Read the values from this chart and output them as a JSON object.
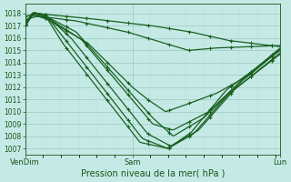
{
  "title": "Pression niveau de la mer( hPa )",
  "xlabel_ticks": [
    "VenDim",
    "Sam",
    "Lun"
  ],
  "xlabel_tick_positions": [
    0.0,
    0.42,
    1.0
  ],
  "ylim": [
    1006.5,
    1018.8
  ],
  "yticks": [
    1007,
    1008,
    1009,
    1010,
    1011,
    1012,
    1013,
    1014,
    1015,
    1016,
    1017,
    1018
  ],
  "bg_color": "#c5eae6",
  "grid_major_color": "#9dc8c2",
  "grid_minor_color": "#b8ddd9",
  "line_color": "#1a6020",
  "line_width": 0.9,
  "figsize": [
    3.2,
    2.0
  ],
  "dpi": 100,
  "complex_lines": [
    {
      "pts_x": [
        0.0,
        0.03,
        0.08,
        0.2,
        0.5,
        0.58,
        0.7,
        0.85,
        1.0
      ],
      "pts_y": [
        1017.0,
        1018.0,
        1017.8,
        1016.5,
        1009.5,
        1008.0,
        1009.5,
        1012.5,
        1015.1
      ],
      "noise": 0.0
    },
    {
      "pts_x": [
        0.0,
        0.03,
        0.08,
        0.18,
        0.48,
        0.57,
        0.68,
        0.82,
        1.0
      ],
      "pts_y": [
        1017.1,
        1018.1,
        1017.9,
        1016.0,
        1008.2,
        1007.2,
        1008.5,
        1011.8,
        1014.8
      ],
      "noise": 0.0
    },
    {
      "pts_x": [
        0.0,
        0.03,
        0.08,
        0.16,
        0.46,
        0.56,
        0.66,
        0.8,
        1.0
      ],
      "pts_y": [
        1017.2,
        1018.1,
        1017.9,
        1015.8,
        1007.8,
        1007.0,
        1008.2,
        1011.5,
        1014.7
      ],
      "noise": 0.0
    },
    {
      "pts_x": [
        0.0,
        0.03,
        0.08,
        0.15,
        0.45,
        0.56,
        0.65,
        0.79,
        1.0
      ],
      "pts_y": [
        1017.3,
        1018.0,
        1017.8,
        1015.5,
        1007.5,
        1007.0,
        1008.3,
        1011.8,
        1015.0
      ],
      "noise": 0.0
    },
    {
      "pts_x": [
        0.0,
        0.03,
        0.1,
        0.25,
        0.42,
        0.48,
        0.55,
        0.62,
        0.75,
        0.88,
        1.0
      ],
      "pts_y": [
        1017.0,
        1017.9,
        1017.5,
        1015.5,
        1012.0,
        1011.0,
        1010.0,
        1010.5,
        1011.5,
        1013.0,
        1015.1
      ],
      "noise": 0.0
    },
    {
      "pts_x": [
        0.0,
        0.05,
        0.2,
        0.4,
        0.56,
        0.64,
        0.75,
        0.88,
        1.0
      ],
      "pts_y": [
        1017.5,
        1017.8,
        1017.4,
        1016.5,
        1015.5,
        1015.0,
        1015.2,
        1015.3,
        1015.4
      ],
      "noise": 0.0
    },
    {
      "pts_x": [
        0.0,
        0.05,
        0.25,
        0.5,
        0.65,
        0.8,
        1.0
      ],
      "pts_y": [
        1017.8,
        1018.0,
        1017.6,
        1017.0,
        1016.5,
        1015.8,
        1015.3
      ],
      "noise": 0.0
    },
    {
      "pts_x": [
        0.0,
        0.03,
        0.08,
        0.22,
        0.5,
        0.58,
        0.72,
        0.86,
        1.0
      ],
      "pts_y": [
        1017.1,
        1017.9,
        1017.6,
        1015.9,
        1009.0,
        1008.5,
        1010.0,
        1012.8,
        1015.2
      ],
      "noise": 0.0
    }
  ]
}
